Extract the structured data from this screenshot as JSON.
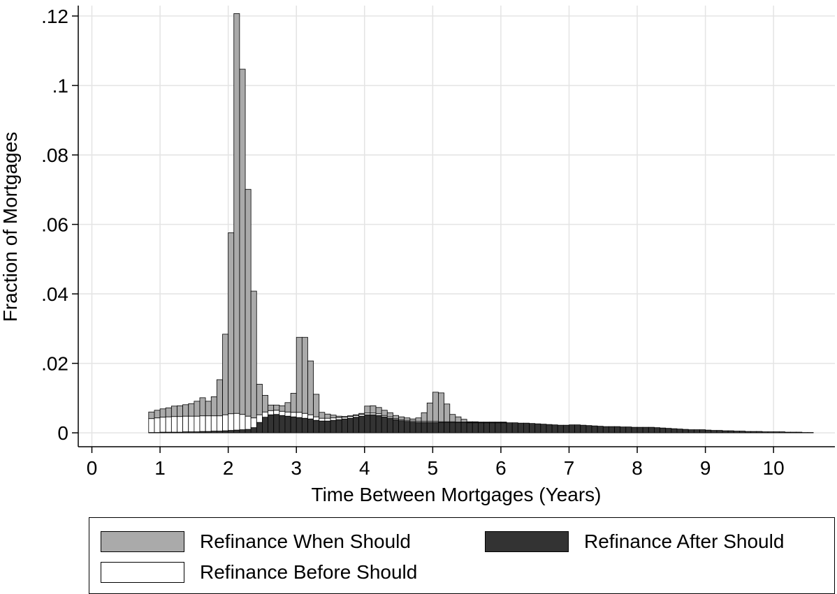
{
  "chart_data": {
    "type": "bar",
    "stacked": true,
    "xlabel": "Time Between Mortgages (Years)",
    "ylabel": "Fraction of Mortgages",
    "xlim": [
      -0.2,
      10.9
    ],
    "ylim": [
      -0.004,
      0.123
    ],
    "x_ticks": [
      0,
      1,
      2,
      3,
      4,
      5,
      6,
      7,
      8,
      9,
      10
    ],
    "x_tick_labels": [
      "0",
      "1",
      "2",
      "3",
      "4",
      "5",
      "6",
      "7",
      "8",
      "9",
      "10"
    ],
    "y_ticks": [
      0,
      0.02,
      0.04,
      0.06,
      0.08,
      0.1,
      0.12
    ],
    "y_tick_labels": [
      "0",
      ".02",
      ".04",
      ".06",
      ".08",
      ".1",
      ".12"
    ],
    "grid": true,
    "bin_width": 0.0833,
    "x": [
      0.833,
      0.917,
      1.0,
      1.083,
      1.167,
      1.25,
      1.333,
      1.417,
      1.5,
      1.583,
      1.667,
      1.75,
      1.833,
      1.917,
      2.0,
      2.083,
      2.167,
      2.25,
      2.333,
      2.417,
      2.5,
      2.583,
      2.667,
      2.75,
      2.833,
      2.917,
      3.0,
      3.083,
      3.167,
      3.25,
      3.333,
      3.417,
      3.5,
      3.583,
      3.667,
      3.75,
      3.833,
      3.917,
      4.0,
      4.083,
      4.167,
      4.25,
      4.333,
      4.417,
      4.5,
      4.583,
      4.667,
      4.75,
      4.833,
      4.917,
      5.0,
      5.083,
      5.167,
      5.25,
      5.333,
      5.417,
      5.5,
      5.583,
      5.667,
      5.75,
      5.833,
      5.917,
      6.0,
      6.083,
      6.167,
      6.25,
      6.333,
      6.417,
      6.5,
      6.583,
      6.667,
      6.75,
      6.833,
      6.917,
      7.0,
      7.083,
      7.167,
      7.25,
      7.333,
      7.417,
      7.5,
      7.583,
      7.667,
      7.75,
      7.833,
      7.917,
      8.0,
      8.083,
      8.167,
      8.25,
      8.333,
      8.417,
      8.5,
      8.583,
      8.667,
      8.75,
      8.833,
      8.917,
      9.0,
      9.083,
      9.167,
      9.25,
      9.333,
      9.417,
      9.5,
      9.583,
      9.667,
      9.75,
      9.833,
      9.917,
      10.0,
      10.083,
      10.167,
      10.25,
      10.333,
      10.417,
      10.5
    ],
    "series": [
      {
        "name": "Refinance After Should",
        "color": "#333333",
        "values": [
          0.0001,
          0.0001,
          0.0002,
          0.0002,
          0.0002,
          0.0002,
          0.0003,
          0.0003,
          0.0003,
          0.0004,
          0.0004,
          0.0005,
          0.0005,
          0.0006,
          0.0007,
          0.0008,
          0.0009,
          0.001,
          0.0015,
          0.003,
          0.0045,
          0.0052,
          0.0053,
          0.005,
          0.0048,
          0.0046,
          0.0044,
          0.0042,
          0.004,
          0.0036,
          0.0034,
          0.0034,
          0.0036,
          0.0038,
          0.004,
          0.0042,
          0.0045,
          0.0048,
          0.0052,
          0.0052,
          0.005,
          0.0046,
          0.0042,
          0.0038,
          0.0035,
          0.0033,
          0.0031,
          0.003,
          0.003,
          0.003,
          0.003,
          0.003,
          0.003,
          0.003,
          0.003,
          0.003,
          0.0029,
          0.0029,
          0.0029,
          0.0029,
          0.0029,
          0.0029,
          0.0029,
          0.0029,
          0.0029,
          0.0028,
          0.0028,
          0.0027,
          0.0026,
          0.0025,
          0.0024,
          0.0023,
          0.0022,
          0.0022,
          0.0023,
          0.0023,
          0.0022,
          0.0021,
          0.002,
          0.0019,
          0.0018,
          0.0018,
          0.0018,
          0.0017,
          0.0017,
          0.0016,
          0.0016,
          0.0016,
          0.0016,
          0.0015,
          0.0014,
          0.0013,
          0.0012,
          0.0011,
          0.001,
          0.0009,
          0.0009,
          0.0009,
          0.0008,
          0.0007,
          0.0007,
          0.0006,
          0.0006,
          0.0005,
          0.0005,
          0.0004,
          0.0004,
          0.0004,
          0.0003,
          0.0003,
          0.0003,
          0.0003,
          0.0002,
          0.0002,
          0.0002,
          0.0001,
          0.0001
        ]
      },
      {
        "name": "Refinance Before Should",
        "color": "#ffffff",
        "values": [
          0.004,
          0.0042,
          0.0043,
          0.0044,
          0.0045,
          0.0045,
          0.0045,
          0.0045,
          0.0045,
          0.0045,
          0.0045,
          0.0044,
          0.0044,
          0.0046,
          0.0048,
          0.0048,
          0.0044,
          0.0038,
          0.0028,
          0.0022,
          0.0015,
          0.0012,
          0.0012,
          0.0012,
          0.0012,
          0.0013,
          0.0015,
          0.0014,
          0.0012,
          0.001,
          0.0008,
          0.0008,
          0.0007,
          0.0006,
          0.0005,
          0.0005,
          0.0005,
          0.0005,
          0.0005,
          0.0005,
          0.0005,
          0.0004,
          0.0004,
          0.0003,
          0.0003,
          0.0003,
          0.0003,
          0.0003,
          0.0003,
          0.0003,
          0.0003,
          0.0002,
          0.0002,
          0.0002,
          0.0001,
          0.0001,
          0.0001,
          0.0001,
          0.0001,
          0.0001,
          0.0001,
          0.0001,
          0.0001,
          0,
          0,
          0,
          0,
          0,
          0,
          0,
          0,
          0,
          0,
          0,
          0,
          0,
          0,
          0,
          0,
          0,
          0,
          0,
          0,
          0,
          0,
          0,
          0,
          0,
          0,
          0,
          0,
          0,
          0,
          0,
          0,
          0,
          0,
          0,
          0,
          0,
          0,
          0,
          0,
          0,
          0,
          0,
          0,
          0,
          0,
          0,
          0,
          0,
          0,
          0,
          0,
          0,
          0
        ]
      },
      {
        "name": "Refinance When Should",
        "color": "#aaaaaa",
        "values": [
          0.0019,
          0.0022,
          0.0024,
          0.0026,
          0.003,
          0.0031,
          0.0033,
          0.0036,
          0.0043,
          0.0052,
          0.0042,
          0.0055,
          0.0104,
          0.0232,
          0.0521,
          0.1151,
          0.0994,
          0.0653,
          0.0365,
          0.0088,
          0.0048,
          0.0016,
          0.0015,
          0.0016,
          0.0027,
          0.0055,
          0.0216,
          0.0219,
          0.0155,
          0.0065,
          0.0017,
          0.0012,
          0.0008,
          0.0004,
          0.0002,
          0.0002,
          0.0002,
          0.0003,
          0.002,
          0.0021,
          0.0018,
          0.0015,
          0.0012,
          0.0009,
          0.0008,
          0.0007,
          0.0006,
          0.001,
          0.0025,
          0.0053,
          0.0084,
          0.0083,
          0.0051,
          0.0021,
          0.0015,
          0.0008,
          0.0002,
          0.0002,
          0.0001,
          0.0001,
          0.0001,
          0.0001,
          0.0001,
          0,
          0,
          0,
          0,
          0,
          0,
          0,
          0,
          0,
          0,
          0,
          0,
          0,
          0,
          0,
          0,
          0,
          0,
          0,
          0,
          0,
          0,
          0,
          0,
          0,
          0,
          0,
          0,
          0,
          0,
          0,
          0,
          0,
          0,
          0,
          0,
          0,
          0,
          0,
          0,
          0,
          0,
          0,
          0,
          0,
          0,
          0,
          0,
          0,
          0,
          0,
          0,
          0,
          0
        ]
      }
    ],
    "legend": {
      "placement": "bottom",
      "items": [
        {
          "label": "Refinance When Should",
          "color": "#aaaaaa"
        },
        {
          "label": "Refinance After Should",
          "color": "#333333"
        },
        {
          "label": "Refinance Before Should",
          "color": "#ffffff"
        }
      ]
    }
  }
}
